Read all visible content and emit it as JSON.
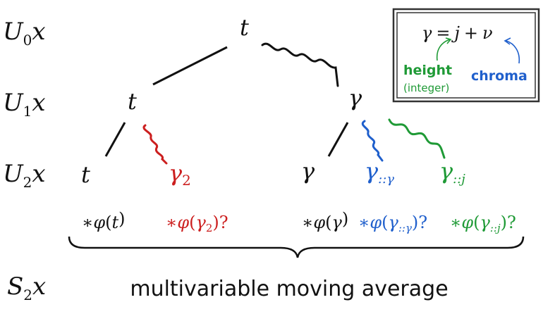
{
  "colors": {
    "black": "#111111",
    "red": "#cc1f1f",
    "blue": "#1f5fcc",
    "green": "#1f9a36"
  },
  "rows": {
    "u0": {
      "var": "U",
      "sub": "0",
      "arg": "x"
    },
    "u1": {
      "var": "U",
      "sub": "1",
      "arg": "x"
    },
    "u2": {
      "var": "U",
      "sub": "2",
      "arg": "x"
    },
    "s2": {
      "var": "S",
      "sub": "2",
      "arg": "x"
    }
  },
  "nodes": {
    "root": "t",
    "level1_left": "t",
    "level1_right": "γ",
    "leaf_t": "t",
    "leaf_gamma2": {
      "base": "γ",
      "sub": "2"
    },
    "leaf_gamma": "γ",
    "leaf_gamma_chroma": {
      "base": "γ",
      "sub": "::γ"
    },
    "leaf_gamma_height": {
      "base": "γ",
      "sub": "::j"
    }
  },
  "phis": {
    "phi_t": {
      "star": "∗",
      "phi": "φ",
      "open": "(",
      "arg": "t",
      "sub": "",
      "close": ")",
      "q": ""
    },
    "phi_gamma2": {
      "star": "∗",
      "phi": "φ",
      "open": "(",
      "arg": "γ",
      "sub": "2",
      "close": ")",
      "q": "?"
    },
    "phi_gamma": {
      "star": "∗",
      "phi": "φ",
      "open": "(",
      "arg": "γ",
      "sub": "",
      "close": ")",
      "q": ""
    },
    "phi_chroma": {
      "star": "∗",
      "phi": "φ",
      "open": "(",
      "arg": "γ",
      "sub": "::γ",
      "close": ")",
      "q": "?"
    },
    "phi_height": {
      "star": "∗",
      "phi": "φ",
      "open": "(",
      "arg": "γ",
      "sub": "::j",
      "close": ")",
      "q": "?"
    }
  },
  "caption": "multivariable moving average",
  "legend": {
    "eq_gamma": "γ",
    "eq_equals": "=",
    "eq_j": "j",
    "eq_plus": "+",
    "eq_nu": "ν",
    "height_label": "height",
    "height_sub": "(integer)",
    "chroma_label": "chroma"
  }
}
